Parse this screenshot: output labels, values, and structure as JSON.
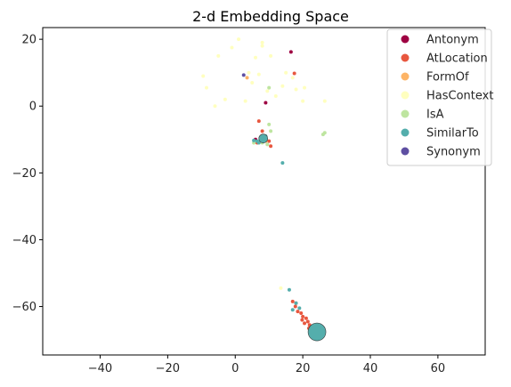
{
  "chart_data": {
    "type": "scatter",
    "title": "2-d Embedding Space",
    "xlabel": "",
    "ylabel": "",
    "xlim": [
      -57,
      74
    ],
    "ylim": [
      -74.5,
      23.5
    ],
    "xticks": [
      -40,
      -20,
      0,
      20,
      40,
      60
    ],
    "yticks": [
      20,
      0,
      -20,
      -40,
      -60
    ],
    "grid": false,
    "legend_position": "top-right",
    "series": [
      {
        "name": "Antonym",
        "color": "#9e0142",
        "points": [
          [
            16.5,
            16.2
          ],
          [
            9,
            1
          ],
          [
            6,
            -10
          ],
          [
            7.5,
            -9.5
          ]
        ]
      },
      {
        "name": "AtLocation",
        "color": "#e8573f",
        "points": [
          [
            17.5,
            9.8
          ],
          [
            7,
            -4.5
          ],
          [
            8,
            -7.5
          ],
          [
            10,
            -10.5
          ],
          [
            10.5,
            -12
          ],
          [
            6.5,
            -11
          ],
          [
            8.5,
            -9
          ],
          [
            17,
            -58.5
          ],
          [
            17.8,
            -60
          ],
          [
            18.5,
            -61.5
          ],
          [
            19.5,
            -62
          ],
          [
            20,
            -63
          ],
          [
            21,
            -63.5
          ],
          [
            21.5,
            -64.5
          ],
          [
            22,
            -65.5
          ],
          [
            22.5,
            -66
          ],
          [
            23,
            -67
          ],
          [
            23.5,
            -66.5
          ],
          [
            22.8,
            -67.5
          ],
          [
            21.8,
            -66.5
          ],
          [
            20.5,
            -65
          ],
          [
            19.8,
            -64
          ],
          [
            18,
            -59
          ]
        ]
      },
      {
        "name": "FormOf",
        "color": "#fdb466",
        "points": [
          [
            3.5,
            8.5
          ],
          [
            9,
            -10.5
          ]
        ]
      },
      {
        "name": "HasContext",
        "color": "#ffffbf",
        "points": [
          [
            -9.5,
            9
          ],
          [
            -8.5,
            5.5
          ],
          [
            -6,
            0
          ],
          [
            -5,
            15
          ],
          [
            -3,
            2
          ],
          [
            -1,
            17.5
          ],
          [
            1,
            20
          ],
          [
            3,
            1.5
          ],
          [
            4,
            10
          ],
          [
            5,
            7
          ],
          [
            6,
            14.5
          ],
          [
            7,
            9.5
          ],
          [
            8,
            19
          ],
          [
            9.5,
            4.5
          ],
          [
            10.5,
            15
          ],
          [
            12,
            3
          ],
          [
            14,
            6
          ],
          [
            15,
            10
          ],
          [
            17,
            8.5
          ],
          [
            18,
            5
          ],
          [
            20,
            1.5
          ],
          [
            20.5,
            5.5
          ],
          [
            26.5,
            1.5
          ],
          [
            13.5,
            -54.5
          ],
          [
            8,
            18
          ]
        ]
      },
      {
        "name": "IsA",
        "color": "#bee5a0",
        "points": [
          [
            10,
            5.5
          ],
          [
            10,
            -5.5
          ],
          [
            10.5,
            -7.5
          ],
          [
            26.5,
            -8
          ],
          [
            26,
            -8.5
          ],
          [
            9.5,
            -11.5
          ],
          [
            8,
            -11
          ],
          [
            5.5,
            -11
          ]
        ]
      },
      {
        "name": "SimilarTo",
        "color": "#54aeac",
        "points": [
          [
            14,
            -17
          ],
          [
            16,
            -55
          ],
          [
            17,
            -61
          ],
          [
            18,
            -59
          ],
          [
            19,
            -60.5
          ],
          [
            6.5,
            -10.5
          ],
          [
            7.5,
            -10
          ],
          [
            8,
            -9.5
          ],
          [
            8.5,
            -10.5
          ],
          [
            9,
            -9
          ],
          [
            7,
            -11
          ],
          [
            5.5,
            -10.3
          ],
          [
            24.2,
            -67.5
          ],
          [
            23.2,
            -67.8
          ],
          [
            24.8,
            -66.8
          ],
          [
            25,
            -68.2
          ],
          [
            23.5,
            -68.5
          ]
        ]
      },
      {
        "name": "Synonym",
        "color": "#5e4fa2",
        "points": [
          [
            2.5,
            9.3
          ],
          [
            8.5,
            -9.8
          ]
        ]
      }
    ],
    "big_points": [
      {
        "series": "SimilarTo",
        "x": 24.2,
        "y": -67.6,
        "size": 10
      },
      {
        "series": "SimilarTo",
        "x": 8.3,
        "y": -9.7,
        "size": 5
      }
    ]
  }
}
